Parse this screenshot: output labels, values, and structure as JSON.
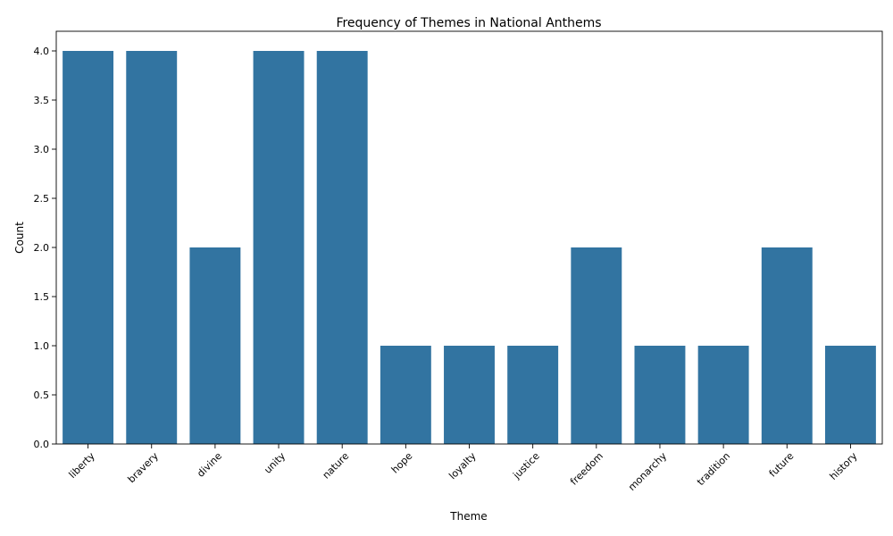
{
  "chart_data": {
    "type": "bar",
    "title": "Frequency of Themes in National Anthems",
    "xlabel": "Theme",
    "ylabel": "Count",
    "categories": [
      "liberty",
      "bravery",
      "divine",
      "unity",
      "nature",
      "hope",
      "loyalty",
      "justice",
      "freedom",
      "monarchy",
      "tradition",
      "future",
      "history"
    ],
    "values": [
      4,
      4,
      2,
      4,
      4,
      1,
      1,
      1,
      2,
      1,
      1,
      2,
      1
    ],
    "ylim": [
      0,
      4.2
    ],
    "yticks": [
      "0.0",
      "0.5",
      "1.0",
      "1.5",
      "2.0",
      "2.5",
      "3.0",
      "3.5",
      "4.0"
    ],
    "bar_color": "#3274a1",
    "grid": false,
    "legend": "none"
  }
}
